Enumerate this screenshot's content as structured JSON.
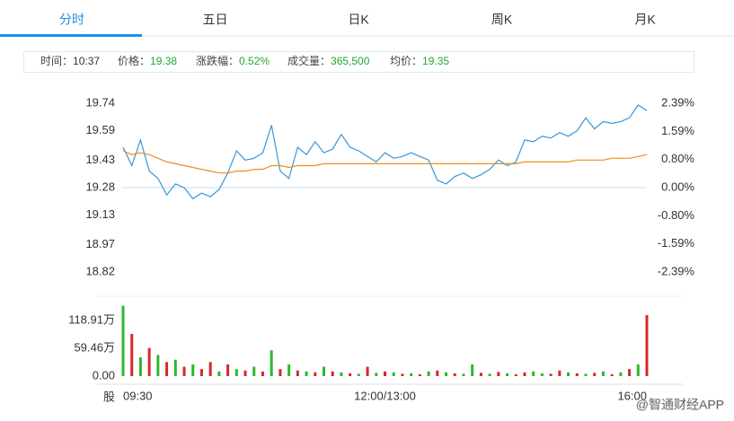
{
  "tabs": [
    "分时",
    "五日",
    "日K",
    "周K",
    "月K"
  ],
  "info": [
    {
      "label": "时间：",
      "value": "10:37"
    },
    {
      "label": "价格：",
      "value": "19.38"
    },
    {
      "label": "涨跌幅：",
      "value": "0.52%"
    },
    {
      "label": "成交量：",
      "value": "365,500"
    },
    {
      "label": "均价：",
      "value": "19.35"
    }
  ],
  "watermark": "@智通财经APP",
  "chart_data": [
    {
      "type": "line",
      "ylim": [
        18.82,
        19.74
      ],
      "yticks": [
        19.74,
        19.59,
        19.43,
        19.28,
        19.13,
        18.97,
        18.82
      ],
      "y2lim": [
        -2.39,
        2.39
      ],
      "y2ticks": [
        {
          "value": 2.39,
          "label": "2.39%"
        },
        {
          "value": 1.59,
          "label": "1.59%"
        },
        {
          "value": 0.8,
          "label": "0.80%"
        },
        {
          "value": 0,
          "label": "0.00%"
        },
        {
          "value": -0.8,
          "label": "-0.80%"
        },
        {
          "value": -1.59,
          "label": "-1.59%"
        },
        {
          "value": -2.39,
          "label": "-2.39%"
        }
      ],
      "up_color": "#22a830",
      "flat_color": "#555555",
      "down_color": "#d9262c",
      "series": [
        {
          "color": "#3a95d8",
          "values": [
            19.5,
            19.4,
            19.54,
            19.37,
            19.33,
            19.24,
            19.3,
            19.28,
            19.22,
            19.25,
            19.23,
            19.27,
            19.36,
            19.48,
            19.43,
            19.44,
            19.47,
            19.62,
            19.37,
            19.33,
            19.5,
            19.46,
            19.53,
            19.47,
            19.49,
            19.57,
            19.5,
            19.48,
            19.45,
            19.42,
            19.47,
            19.44,
            19.45,
            19.47,
            19.45,
            19.43,
            19.32,
            19.3,
            19.34,
            19.36,
            19.33,
            19.35,
            19.38,
            19.43,
            19.4,
            19.42,
            19.54,
            19.53,
            19.56,
            19.55,
            19.58,
            19.56,
            19.59,
            19.66,
            19.6,
            19.64,
            19.63,
            19.64,
            19.66,
            19.73,
            19.7
          ]
        },
        {
          "color": "#f08c1a",
          "values": [
            19.48,
            19.46,
            19.47,
            19.46,
            19.44,
            19.42,
            19.41,
            19.4,
            19.39,
            19.38,
            19.37,
            19.36,
            19.36,
            19.37,
            19.37,
            19.38,
            19.38,
            19.4,
            19.4,
            19.39,
            19.4,
            19.4,
            19.4,
            19.41,
            19.41,
            19.41,
            19.41,
            19.41,
            19.41,
            19.41,
            19.41,
            19.41,
            19.41,
            19.41,
            19.41,
            19.41,
            19.41,
            19.41,
            19.41,
            19.41,
            19.41,
            19.41,
            19.41,
            19.41,
            19.41,
            19.41,
            19.42,
            19.42,
            19.42,
            19.42,
            19.42,
            19.42,
            19.43,
            19.43,
            19.43,
            19.43,
            19.44,
            19.44,
            19.44,
            19.45,
            19.46
          ]
        }
      ]
    },
    {
      "type": "bar",
      "xlabel": "股",
      "ylim": [
        0,
        155
      ],
      "yticks": [
        {
          "value": 118.91,
          "label": "118.91万"
        },
        {
          "value": 59.46,
          "label": "59.46万"
        },
        {
          "value": 0,
          "label": "0.00"
        }
      ],
      "categories": [
        "09:30",
        null,
        null,
        null,
        null,
        null,
        null,
        null,
        null,
        null,
        null,
        null,
        null,
        null,
        null,
        null,
        null,
        null,
        null,
        null,
        null,
        null,
        null,
        null,
        null,
        null,
        null,
        null,
        null,
        null,
        "12:00/13:00",
        null,
        null,
        null,
        null,
        null,
        null,
        null,
        null,
        null,
        null,
        null,
        null,
        null,
        null,
        null,
        null,
        null,
        null,
        null,
        null,
        null,
        null,
        null,
        null,
        null,
        null,
        null,
        null,
        null,
        "16:00"
      ],
      "values": [
        150,
        90,
        40,
        60,
        45,
        30,
        35,
        20,
        25,
        15,
        30,
        10,
        25,
        15,
        12,
        20,
        10,
        55,
        15,
        25,
        12,
        10,
        8,
        20,
        10,
        8,
        6,
        5,
        20,
        7,
        10,
        8,
        5,
        6,
        4,
        10,
        12,
        8,
        6,
        5,
        25,
        7,
        5,
        9,
        6,
        4,
        8,
        10,
        6,
        5,
        12,
        8,
        6,
        5,
        7,
        10,
        4,
        8,
        15,
        25,
        130
      ],
      "colors": [
        "#2cb82c",
        "#d9262c",
        "#2cb82c",
        "#d9262c",
        "#2cb82c",
        "#d9262c",
        "#2cb82c",
        "#d9262c",
        "#2cb82c",
        "#d9262c",
        "#d9262c",
        "#2cb82c",
        "#d9262c",
        "#2cb82c",
        "#d9262c",
        "#2cb82c",
        "#d9262c",
        "#2cb82c",
        "#d9262c",
        "#2cb82c",
        "#d9262c",
        "#2cb82c",
        "#d9262c",
        "#2cb82c",
        "#d9262c",
        "#2cb82c",
        "#d9262c",
        "#2cb82c",
        "#d9262c",
        "#2cb82c",
        "#d9262c",
        "#2cb82c",
        "#d9262c",
        "#2cb82c",
        "#d9262c",
        "#2cb82c",
        "#d9262c",
        "#2cb82c",
        "#d9262c",
        "#2cb82c",
        "#2cb82c",
        "#d9262c",
        "#2cb82c",
        "#d9262c",
        "#2cb82c",
        "#d9262c",
        "#d9262c",
        "#2cb82c",
        "#2cb82c",
        "#d9262c",
        "#d9262c",
        "#2cb82c",
        "#d9262c",
        "#2cb82c",
        "#d9262c",
        "#2cb82c",
        "#d9262c",
        "#2cb82c",
        "#d9262c",
        "#2cb82c",
        "#d9262c"
      ]
    }
  ]
}
